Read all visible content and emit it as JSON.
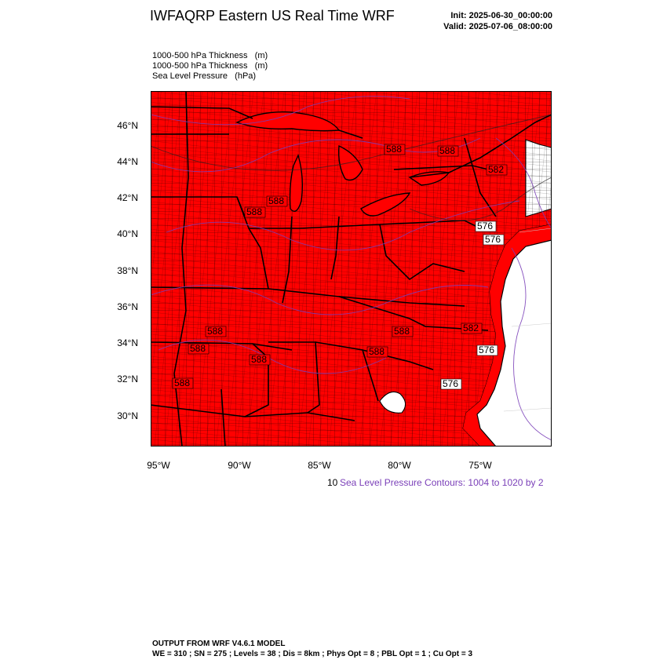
{
  "header": {
    "title": "IWFAQRP Eastern US Real Time WRF",
    "init": "Init: 2025-06-30_00:00:00",
    "valid": "Valid: 2025-07-06_08:00:00"
  },
  "fields": [
    "1000-500 hPa Thickness   (m)",
    "1000-500 hPa Thickness   (m)",
    "Sea Level Pressure   (hPa)"
  ],
  "map": {
    "fill_color": "#ff0000",
    "ocean_color": "#ffffff",
    "contour_color": "#7a3fb8",
    "lat_labels": [
      "46°N",
      "44°N",
      "42°N",
      "40°N",
      "38°N",
      "36°N",
      "34°N",
      "32°N",
      "30°N"
    ],
    "lon_labels": [
      "95°W",
      "90°W",
      "85°W",
      "80°W",
      "75°W"
    ],
    "thickness_labels": [
      "588",
      "588",
      "588",
      "588",
      "582",
      "576",
      "576",
      "576",
      "576",
      "588",
      "588",
      "588",
      "588",
      "588",
      "588",
      "582"
    ]
  },
  "contour_note": {
    "prefix": "10",
    "text": "Sea Level Pressure Contours: 1004 to 1020 by 2"
  },
  "footer": {
    "line1": "OUTPUT FROM WRF V4.6.1 MODEL",
    "line2": "WE = 310 ; SN = 275 ; Levels = 38 ; Dis = 8km ; Phys Opt = 8 ; PBL Opt = 1 ; Cu Opt = 3"
  }
}
